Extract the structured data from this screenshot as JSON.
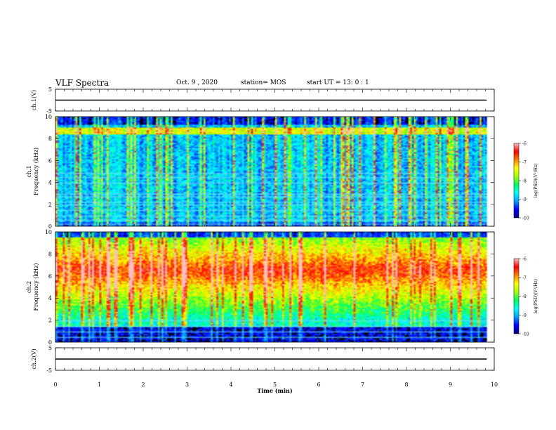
{
  "header": {
    "title": "VLF Spectra",
    "date": "Oct. 9  , 2020",
    "station": "station= MOS",
    "start": "start  UT  =   13: 0   : 1"
  },
  "colors": {
    "colormap": [
      "#000080",
      "#0000ff",
      "#00a0ff",
      "#00ffff",
      "#00ff60",
      "#a0ff00",
      "#ffff00",
      "#ff8000",
      "#ff0000",
      "#ffc0c0"
    ],
    "axis": "#000000",
    "background": "#ffffff"
  },
  "chart_data": [
    {
      "type": "line",
      "panel": "ch1-waveform",
      "ylabel": "ch.1(V)",
      "ylim": [
        -5,
        5
      ],
      "yticks": [
        "5",
        "-5"
      ],
      "x": [
        0,
        9.83
      ],
      "y": [
        0,
        0
      ],
      "xlim": [
        0,
        10
      ]
    },
    {
      "type": "heatmap",
      "panel": "ch1-spectrogram",
      "ylabel": "ch.1\nFrequency (kHz)",
      "ylim": [
        0,
        10
      ],
      "yticks": [
        "0",
        "2",
        "4",
        "6",
        "8",
        "10"
      ],
      "xlim": [
        0,
        10
      ],
      "data_end_min": 9.83,
      "colorbar": {
        "label": "log(PSD)(V²/Hz)",
        "range": [
          -10,
          -6
        ],
        "ticks": [
          "-6",
          "-7",
          "-8",
          "-9",
          "-10"
        ]
      },
      "noise_lines_khz": [
        0.3,
        0.6,
        1.0,
        1.5,
        2.0,
        2.3,
        2.7,
        3.0,
        4.0,
        4.5,
        4.9
      ],
      "band_khz": [
        8.4,
        9.0
      ]
    },
    {
      "type": "heatmap",
      "panel": "ch2-spectrogram",
      "ylabel": "ch.2\nFrequency (kHz)",
      "ylim": [
        0,
        10
      ],
      "yticks": [
        "0",
        "2",
        "4",
        "6",
        "8",
        "10"
      ],
      "xlim": [
        0,
        10
      ],
      "data_end_min": 9.83,
      "colorbar": {
        "label": "log(PSD)(V²/Hz)",
        "range": [
          -10,
          -6
        ],
        "ticks": [
          "-6",
          "-7",
          "-8",
          "-9",
          "-10"
        ]
      },
      "noise_lines_khz": [
        0.5,
        1.0,
        1.5,
        2.0
      ],
      "peak_khz": 6.5
    },
    {
      "type": "line",
      "panel": "ch2-waveform",
      "ylabel": "ch.2(V)",
      "ylim": [
        -5,
        5
      ],
      "yticks": [
        "5",
        "-5"
      ],
      "x": [
        0,
        9.83
      ],
      "y": [
        0,
        0
      ],
      "xlim": [
        0,
        10
      ]
    },
    {
      "type": "axis",
      "panel": "time-axis",
      "xlabel": "Time  (min)",
      "xticks": [
        "0",
        "1",
        "2",
        "3",
        "4",
        "5",
        "6",
        "7",
        "8",
        "9",
        "10"
      ],
      "xlim": [
        0,
        10
      ]
    }
  ]
}
